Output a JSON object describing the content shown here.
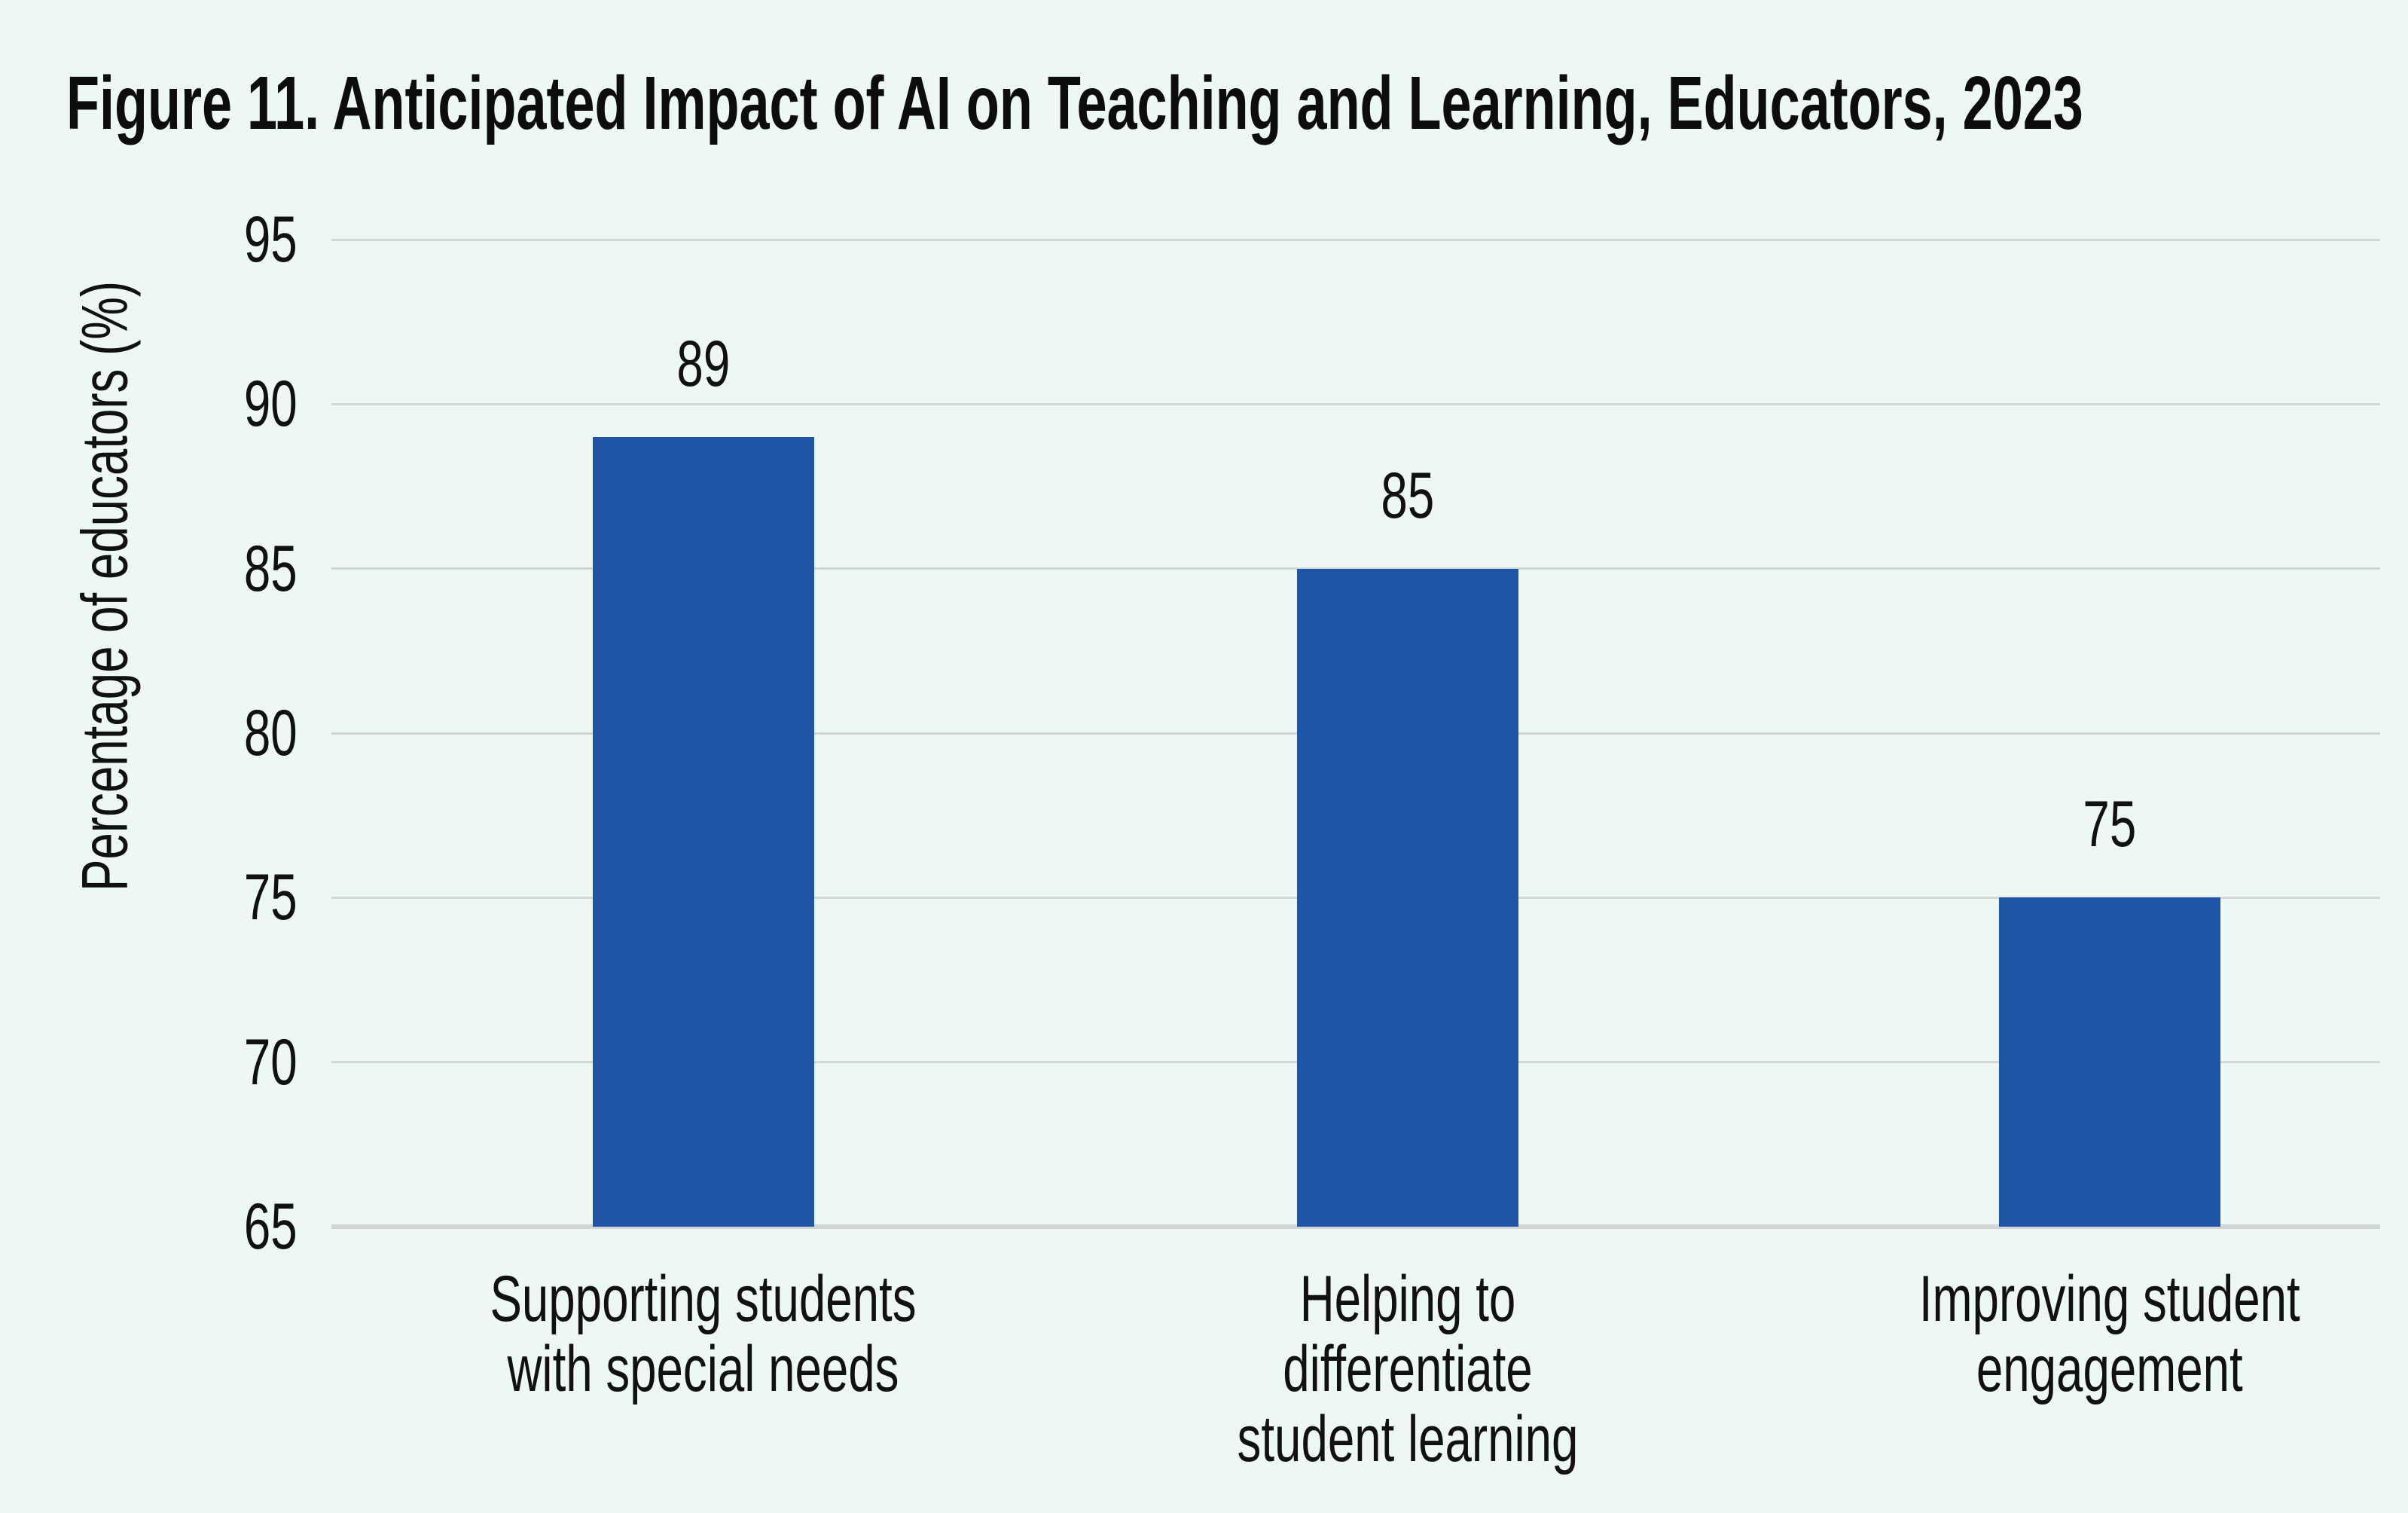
{
  "figure": {
    "title": "Figure 11. Anticipated Impact of AI on Teaching and Learning, Educators, 2023"
  },
  "chart_data": {
    "type": "bar",
    "title": "Figure 11. Anticipated Impact of AI on Teaching and Learning, Educators, 2023",
    "categories": [
      "Supporting students with special needs",
      "Helping to differentiate student learning",
      "Improving student engagement"
    ],
    "category_lines": [
      [
        "Supporting students",
        "with special needs"
      ],
      [
        "Helping to differentiate",
        "student learning"
      ],
      [
        "Improving student",
        "engagement"
      ]
    ],
    "values": [
      89,
      85,
      75
    ],
    "value_labels": [
      "89",
      "85",
      "75"
    ],
    "xlabel": "",
    "ylabel": "Percentage of educators (%)",
    "ylim": [
      65,
      95
    ],
    "yticks": [
      65,
      70,
      75,
      80,
      85,
      90,
      95
    ],
    "grid": true,
    "legend": "none",
    "colors": {
      "bar": "#2055A6",
      "background": "#EDF7F4",
      "gridline": "#D5D7D7",
      "baseline": "#D2D5D5",
      "text": "#111111"
    }
  }
}
